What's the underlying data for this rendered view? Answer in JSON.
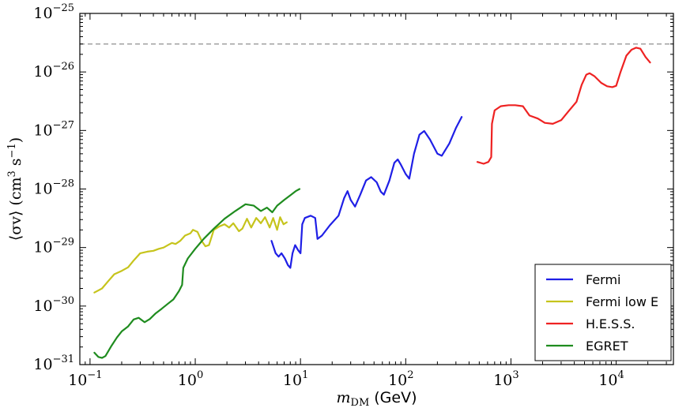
{
  "chart_data": {
    "type": "line",
    "xscale": "log",
    "yscale": "log",
    "xlim": [
      0.08,
      35000
    ],
    "ylim": [
      1e-31,
      1e-25
    ],
    "xticks": [
      {
        "value": 0.1,
        "base": "10",
        "exp": "−1"
      },
      {
        "value": 1,
        "base": "10",
        "exp": "0"
      },
      {
        "value": 10,
        "base": "10",
        "exp": "1"
      },
      {
        "value": 100,
        "base": "10",
        "exp": "2"
      },
      {
        "value": 1000,
        "base": "10",
        "exp": "3"
      },
      {
        "value": 10000,
        "base": "10",
        "exp": "4"
      }
    ],
    "yticks": [
      {
        "value": 1e-31,
        "base": "10",
        "exp": "−31"
      },
      {
        "value": 1e-30,
        "base": "10",
        "exp": "−30"
      },
      {
        "value": 1e-29,
        "base": "10",
        "exp": "−29"
      },
      {
        "value": 1e-28,
        "base": "10",
        "exp": "−28"
      },
      {
        "value": 1e-27,
        "base": "10",
        "exp": "−27"
      },
      {
        "value": 1e-26,
        "base": "10",
        "exp": "−26"
      },
      {
        "value": 1e-25,
        "base": "10",
        "exp": "−25"
      }
    ],
    "xlabel": {
      "math": "m",
      "sub": "DM",
      "unit": "(GeV)"
    },
    "ylabel": {
      "text": "⟨σv⟩ (cm",
      "sup1": "3",
      "mid": " s",
      "sup2": "−1",
      "end": ")"
    },
    "reference_line": {
      "y": 3e-26,
      "color": "#a0a0a0",
      "style": "dashed"
    },
    "legend_position": "lower-right",
    "series": [
      {
        "name": "Fermi",
        "color": "#1f1fe6",
        "points": [
          [
            5.3,
            1.3e-29
          ],
          [
            5.8,
            8e-30
          ],
          [
            6.2,
            7e-30
          ],
          [
            6.6,
            8e-30
          ],
          [
            7.1,
            6.5e-30
          ],
          [
            7.6,
            5e-30
          ],
          [
            8.0,
            4.5e-30
          ],
          [
            8.4,
            8e-30
          ],
          [
            8.9,
            1.1e-29
          ],
          [
            9.5,
            9e-30
          ],
          [
            10.0,
            8e-30
          ],
          [
            10.4,
            2.5e-29
          ],
          [
            11.0,
            3.2e-29
          ],
          [
            12.5,
            3.5e-29
          ],
          [
            13.8,
            3.2e-29
          ],
          [
            14.5,
            1.4e-29
          ],
          [
            16,
            1.6e-29
          ],
          [
            19,
            2.4e-29
          ],
          [
            23,
            3.5e-29
          ],
          [
            26,
            7e-29
          ],
          [
            28,
            9.2e-29
          ],
          [
            30,
            6.5e-29
          ],
          [
            33,
            5e-29
          ],
          [
            37,
            8e-29
          ],
          [
            42,
            1.4e-28
          ],
          [
            47,
            1.6e-28
          ],
          [
            53,
            1.3e-28
          ],
          [
            58,
            9e-29
          ],
          [
            62,
            8e-29
          ],
          [
            70,
            1.4e-28
          ],
          [
            78,
            2.8e-28
          ],
          [
            84,
            3.2e-28
          ],
          [
            90,
            2.6e-28
          ],
          [
            100,
            1.8e-28
          ],
          [
            108,
            1.5e-28
          ],
          [
            120,
            4e-28
          ],
          [
            135,
            8.5e-28
          ],
          [
            150,
            9.8e-28
          ],
          [
            170,
            7e-28
          ],
          [
            200,
            4e-28
          ],
          [
            220,
            3.7e-28
          ],
          [
            260,
            6e-28
          ],
          [
            300,
            1.1e-27
          ],
          [
            340,
            1.7e-27
          ]
        ]
      },
      {
        "name": "Fermi low E",
        "color": "#c6c41c",
        "points": [
          [
            0.11,
            1.7e-30
          ],
          [
            0.13,
            2e-30
          ],
          [
            0.15,
            2.7e-30
          ],
          [
            0.17,
            3.5e-30
          ],
          [
            0.2,
            4e-30
          ],
          [
            0.23,
            4.6e-30
          ],
          [
            0.26,
            6e-30
          ],
          [
            0.3,
            8e-30
          ],
          [
            0.35,
            8.5e-30
          ],
          [
            0.4,
            8.8e-30
          ],
          [
            0.45,
            9.5e-30
          ],
          [
            0.5,
            1e-29
          ],
          [
            0.55,
            1.1e-29
          ],
          [
            0.6,
            1.2e-29
          ],
          [
            0.65,
            1.15e-29
          ],
          [
            0.72,
            1.3e-29
          ],
          [
            0.8,
            1.6e-29
          ],
          [
            0.9,
            1.75e-29
          ],
          [
            0.95,
            2e-29
          ],
          [
            1.05,
            1.85e-29
          ],
          [
            1.15,
            1.3e-29
          ],
          [
            1.25,
            1.05e-29
          ],
          [
            1.35,
            1.1e-29
          ],
          [
            1.5,
            2e-29
          ],
          [
            1.7,
            2.3e-29
          ],
          [
            1.9,
            2.5e-29
          ],
          [
            2.1,
            2.2e-29
          ],
          [
            2.3,
            2.6e-29
          ],
          [
            2.6,
            1.9e-29
          ],
          [
            2.8,
            2.1e-29
          ],
          [
            3.1,
            3.1e-29
          ],
          [
            3.4,
            2.2e-29
          ],
          [
            3.8,
            3.2e-29
          ],
          [
            4.2,
            2.6e-29
          ],
          [
            4.6,
            3.3e-29
          ],
          [
            5.1,
            2.2e-29
          ],
          [
            5.5,
            3.2e-29
          ],
          [
            6.0,
            2e-29
          ],
          [
            6.4,
            3.3e-29
          ],
          [
            6.9,
            2.5e-29
          ],
          [
            7.4,
            2.7e-29
          ]
        ]
      },
      {
        "name": "H.E.S.S.",
        "color": "#ee2222",
        "points": [
          [
            480,
            2.9e-28
          ],
          [
            550,
            2.7e-28
          ],
          [
            610,
            2.9e-28
          ],
          [
            650,
            3.5e-28
          ],
          [
            660,
            1.3e-27
          ],
          [
            700,
            2.2e-27
          ],
          [
            800,
            2.6e-27
          ],
          [
            950,
            2.7e-27
          ],
          [
            1100,
            2.7e-27
          ],
          [
            1300,
            2.6e-27
          ],
          [
            1500,
            1.8e-27
          ],
          [
            1800,
            1.6e-27
          ],
          [
            2100,
            1.35e-27
          ],
          [
            2500,
            1.3e-27
          ],
          [
            3000,
            1.5e-27
          ],
          [
            3500,
            2.1e-27
          ],
          [
            4200,
            3.1e-27
          ],
          [
            4700,
            6e-27
          ],
          [
            5200,
            9e-27
          ],
          [
            5600,
            9.5e-27
          ],
          [
            6200,
            8.5e-27
          ],
          [
            7200,
            6.5e-27
          ],
          [
            8200,
            5.7e-27
          ],
          [
            9200,
            5.5e-27
          ],
          [
            10000,
            5.8e-27
          ],
          [
            11000,
            1e-26
          ],
          [
            12500,
            1.9e-26
          ],
          [
            14000,
            2.4e-26
          ],
          [
            15500,
            2.6e-26
          ],
          [
            17000,
            2.5e-26
          ],
          [
            19000,
            1.8e-26
          ],
          [
            21000,
            1.45e-26
          ]
        ]
      },
      {
        "name": "EGRET",
        "color": "#1f8c1f",
        "points": [
          [
            0.11,
            1.6e-31
          ],
          [
            0.12,
            1.35e-31
          ],
          [
            0.13,
            1.3e-31
          ],
          [
            0.14,
            1.4e-31
          ],
          [
            0.16,
            2.1e-31
          ],
          [
            0.18,
            2.9e-31
          ],
          [
            0.2,
            3.7e-31
          ],
          [
            0.23,
            4.5e-31
          ],
          [
            0.26,
            5.9e-31
          ],
          [
            0.29,
            6.3e-31
          ],
          [
            0.33,
            5.3e-31
          ],
          [
            0.37,
            6e-31
          ],
          [
            0.42,
            7.5e-31
          ],
          [
            0.48,
            9e-31
          ],
          [
            0.55,
            1.1e-30
          ],
          [
            0.62,
            1.3e-30
          ],
          [
            0.7,
            1.8e-30
          ],
          [
            0.75,
            2.3e-30
          ],
          [
            0.77,
            4.5e-30
          ],
          [
            0.85,
            6.5e-30
          ],
          [
            1.0,
            9.5e-30
          ],
          [
            1.2,
            1.4e-29
          ],
          [
            1.5,
            2.1e-29
          ],
          [
            1.9,
            3.1e-29
          ],
          [
            2.4,
            4.2e-29
          ],
          [
            3.0,
            5.5e-29
          ],
          [
            3.6,
            5.2e-29
          ],
          [
            4.2,
            4.2e-29
          ],
          [
            4.8,
            4.8e-29
          ],
          [
            5.4,
            4e-29
          ],
          [
            6.0,
            5.2e-29
          ],
          [
            7.0,
            6.5e-29
          ],
          [
            8.0,
            7.8e-29
          ],
          [
            9.0,
            9.2e-29
          ],
          [
            9.8,
            1e-28
          ]
        ]
      }
    ]
  }
}
